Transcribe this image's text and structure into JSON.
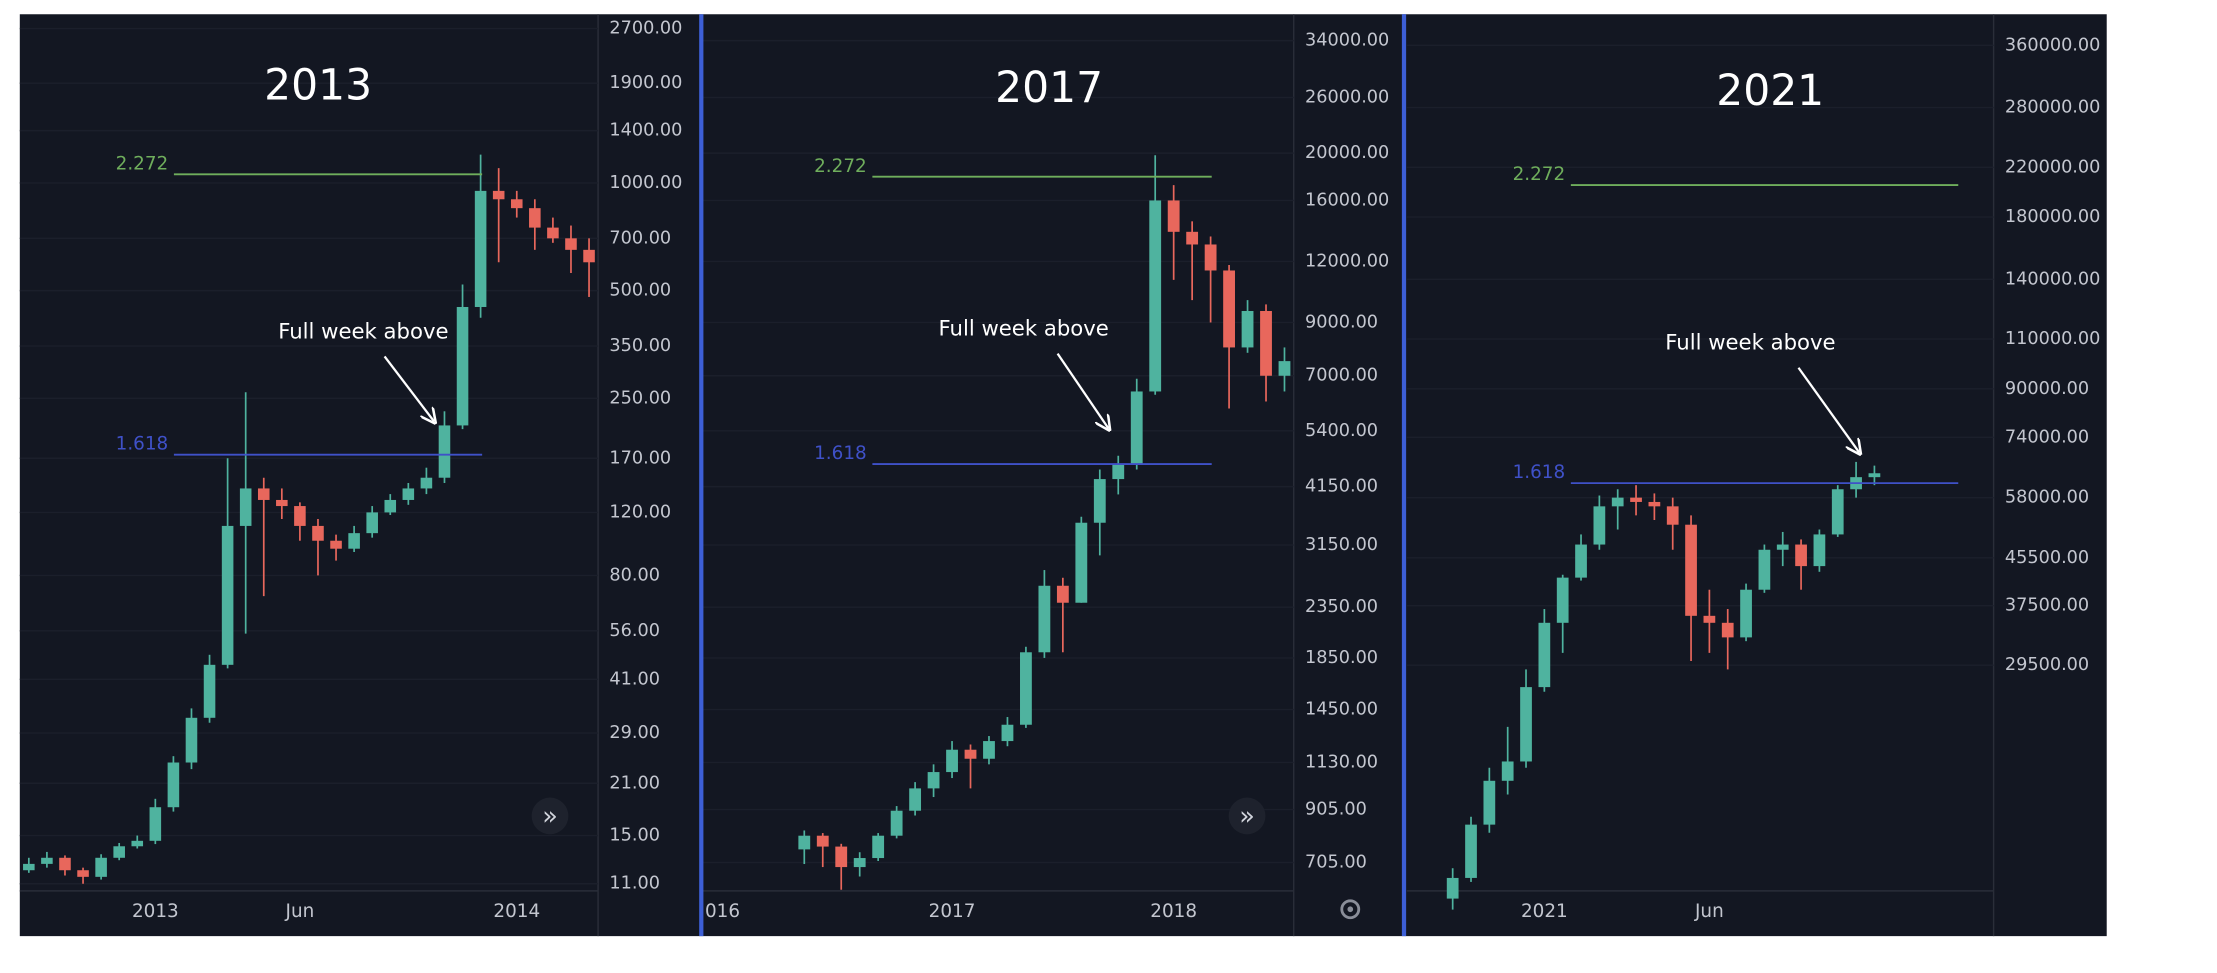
{
  "chart_data": [
    {
      "type": "candlestick",
      "title": "2013",
      "annotation": "Full week above",
      "log_scale": true,
      "grid": true,
      "colors": {
        "up": "#4fb39f",
        "down": "#e8675c"
      },
      "categories": [
        null,
        null,
        null,
        null,
        null,
        null,
        null,
        "2013",
        null,
        null,
        null,
        null,
        null,
        null,
        null,
        "Jun",
        null,
        null,
        null,
        null,
        null,
        null,
        null,
        null,
        null,
        null,
        null,
        "2014",
        null,
        null,
        null,
        null
      ],
      "open": [
        12,
        12.5,
        13,
        12,
        11.5,
        13,
        14,
        14.5,
        18,
        24,
        32,
        45,
        110,
        140,
        130,
        125,
        110,
        100,
        95,
        105,
        120,
        130,
        140,
        150,
        210,
        450,
        950,
        900,
        850,
        750,
        700,
        650
      ],
      "high": [
        13,
        13.5,
        13.2,
        12.2,
        13.3,
        14.3,
        15,
        19,
        25,
        34,
        48,
        170,
        260,
        150,
        140,
        128,
        115,
        104,
        110,
        125,
        135,
        145,
        160,
        230,
        520,
        1200,
        1100,
        950,
        900,
        800,
        760,
        700
      ],
      "low": [
        11.8,
        12.2,
        11.6,
        11,
        11.3,
        12.8,
        13.8,
        14.2,
        17.5,
        23,
        31,
        44,
        55,
        70,
        115,
        100,
        80,
        88,
        93,
        102,
        118,
        126,
        135,
        145,
        205,
        420,
        600,
        800,
        650,
        680,
        560,
        480
      ],
      "close": [
        12.5,
        13,
        12,
        11.5,
        13,
        14,
        14.5,
        18,
        24,
        32,
        45,
        110,
        140,
        130,
        125,
        110,
        100,
        95,
        105,
        120,
        130,
        140,
        150,
        210,
        450,
        950,
        900,
        850,
        750,
        700,
        650,
        600
      ],
      "levels": [
        {
          "label": "2.272",
          "value": 1057,
          "color": "#6fae5c"
        },
        {
          "label": "1.618",
          "value": 174,
          "color": "#3f51c8"
        }
      ],
      "ylim": [
        10.7,
        2960
      ],
      "yticks": [
        {
          "value": 2700,
          "label": "2700.00"
        },
        {
          "value": 1900,
          "label": "1900.00"
        },
        {
          "value": 1400,
          "label": "1400.00"
        },
        {
          "value": 1000,
          "label": "1000.00"
        },
        {
          "value": 700,
          "label": "700.00"
        },
        {
          "value": 500,
          "label": "500.00"
        },
        {
          "value": 350,
          "label": "350.00"
        },
        {
          "value": 250,
          "label": "250.00"
        },
        {
          "value": 170,
          "label": "170.00"
        },
        {
          "value": 120,
          "label": "120.00"
        },
        {
          "value": 80,
          "label": "80.00"
        },
        {
          "value": 56,
          "label": "56.00"
        },
        {
          "value": 41,
          "label": "41.00"
        },
        {
          "value": 29,
          "label": "29.00"
        },
        {
          "value": 21,
          "label": "21.00"
        },
        {
          "value": 15,
          "label": "15.00"
        },
        {
          "value": 11,
          "label": "11.00"
        }
      ]
    },
    {
      "type": "candlestick",
      "title": "2017",
      "annotation": "Full week above",
      "log_scale": true,
      "grid": true,
      "colors": {
        "up": "#4fb39f",
        "down": "#e8675c"
      },
      "categories": [
        "016",
        null,
        null,
        null,
        null,
        null,
        null,
        null,
        null,
        null,
        null,
        null,
        null,
        "2017",
        null,
        null,
        null,
        null,
        null,
        null,
        null,
        null,
        null,
        null,
        null,
        "2018",
        null,
        null,
        null,
        null,
        null,
        null
      ],
      "open": [
        null,
        null,
        null,
        null,
        null,
        750,
        800,
        760,
        690,
        720,
        800,
        900,
        1000,
        1080,
        1200,
        1150,
        1250,
        1350,
        1900,
        2600,
        2400,
        3500,
        4300,
        4600,
        6500,
        16000,
        13800,
        13000,
        11500,
        8000,
        9500,
        7000
      ],
      "high": [
        null,
        null,
        null,
        null,
        null,
        820,
        810,
        770,
        740,
        810,
        920,
        1030,
        1120,
        1250,
        1230,
        1280,
        1400,
        1950,
        2800,
        2700,
        3600,
        4500,
        4800,
        6900,
        19800,
        17200,
        14500,
        13500,
        11800,
        10000,
        9800,
        8000
      ],
      "low": [
        null,
        null,
        null,
        null,
        null,
        700,
        690,
        620,
        660,
        710,
        790,
        880,
        960,
        1050,
        1000,
        1120,
        1220,
        1330,
        1850,
        1900,
        2400,
        3000,
        4000,
        4500,
        6400,
        11000,
        10000,
        9000,
        6000,
        7800,
        6200,
        6500
      ],
      "close": [
        null,
        null,
        null,
        null,
        null,
        800,
        760,
        690,
        720,
        800,
        900,
        1000,
        1080,
        1200,
        1150,
        1250,
        1350,
        1900,
        2600,
        2400,
        3500,
        4300,
        4600,
        6500,
        16000,
        13800,
        13000,
        11500,
        8000,
        9500,
        7000,
        7500
      ],
      "levels": [
        {
          "label": "2.272",
          "value": 17900,
          "color": "#6fae5c"
        },
        {
          "label": "1.618",
          "value": 4615,
          "color": "#3f51c8"
        }
      ],
      "ylim": [
        625,
        38500
      ],
      "yticks": [
        {
          "value": 34000,
          "label": "34000.00"
        },
        {
          "value": 26000,
          "label": "26000.00"
        },
        {
          "value": 20000,
          "label": "20000.00"
        },
        {
          "value": 16000,
          "label": "16000.00"
        },
        {
          "value": 12000,
          "label": "12000.00"
        },
        {
          "value": 9000,
          "label": "9000.00"
        },
        {
          "value": 7000,
          "label": "7000.00"
        },
        {
          "value": 5400,
          "label": "5400.00"
        },
        {
          "value": 4150,
          "label": "4150.00"
        },
        {
          "value": 3150,
          "label": "3150.00"
        },
        {
          "value": 2350,
          "label": "2350.00"
        },
        {
          "value": 1850,
          "label": "1850.00"
        },
        {
          "value": 1450,
          "label": "1450.00"
        },
        {
          "value": 1130,
          "label": "1130.00"
        },
        {
          "value": 905,
          "label": "905.00"
        },
        {
          "value": 705,
          "label": "705.00"
        }
      ]
    },
    {
      "type": "candlestick",
      "title": "2021",
      "annotation": "Full week above",
      "log_scale": true,
      "grid": true,
      "colors": {
        "up": "#4fb39f",
        "down": "#e8675c"
      },
      "categories": [
        null,
        null,
        null,
        null,
        null,
        null,
        null,
        "2021",
        null,
        null,
        null,
        null,
        null,
        null,
        null,
        null,
        "Jun",
        null,
        null,
        null,
        null,
        null,
        null,
        null,
        null,
        null,
        null,
        null,
        null,
        null,
        null,
        null
      ],
      "open": [
        null,
        null,
        11500,
        12500,
        15500,
        18500,
        20000,
        27000,
        35000,
        42000,
        48000,
        56000,
        58000,
        57000,
        56000,
        52000,
        36000,
        35000,
        33000,
        40000,
        47000,
        48000,
        44000,
        50000,
        60000,
        63000,
        null,
        null,
        null,
        null,
        null,
        null
      ],
      "high": [
        null,
        null,
        13000,
        16000,
        19500,
        23000,
        29000,
        37000,
        42500,
        50000,
        58500,
        60000,
        61000,
        59000,
        58000,
        54000,
        40000,
        37000,
        41000,
        48000,
        50500,
        49000,
        51000,
        61000,
        67000,
        66000,
        null,
        null,
        null,
        null,
        null,
        null
      ],
      "low": [
        null,
        null,
        11000,
        12300,
        15000,
        17500,
        19500,
        26500,
        31000,
        41500,
        47000,
        51000,
        54000,
        53000,
        47000,
        30000,
        31000,
        29000,
        32500,
        39500,
        44000,
        40000,
        43000,
        49500,
        58000,
        61000,
        null,
        null,
        null,
        null,
        null,
        null
      ],
      "close": [
        null,
        null,
        12500,
        15500,
        18500,
        20000,
        27000,
        35000,
        42000,
        48000,
        56000,
        58000,
        57000,
        56000,
        52000,
        36000,
        35000,
        33000,
        40000,
        47000,
        48000,
        44000,
        50000,
        60000,
        63000,
        64000,
        null,
        null,
        null,
        null,
        null,
        null
      ],
      "levels": [
        {
          "label": "2.272",
          "value": 204800,
          "color": "#6fae5c"
        },
        {
          "label": "1.618",
          "value": 61500,
          "color": "#3f51c8"
        }
      ],
      "ylim": [
        12000,
        408000
      ],
      "yticks": [
        {
          "value": 360000,
          "label": "360000.00"
        },
        {
          "value": 280000,
          "label": "280000.00"
        },
        {
          "value": 220000,
          "label": "220000.00"
        },
        {
          "value": 180000,
          "label": "180000.00"
        },
        {
          "value": 140000,
          "label": "140000.00"
        },
        {
          "value": 110000,
          "label": "110000.00"
        },
        {
          "value": 90000,
          "label": "90000.00"
        },
        {
          "value": 74000,
          "label": "74000.00"
        },
        {
          "value": 58000,
          "label": "58000.00"
        },
        {
          "value": 45500,
          "label": "45500.00"
        },
        {
          "value": 37500,
          "label": "37500.00"
        },
        {
          "value": 29500,
          "label": "29500.00"
        }
      ]
    }
  ]
}
